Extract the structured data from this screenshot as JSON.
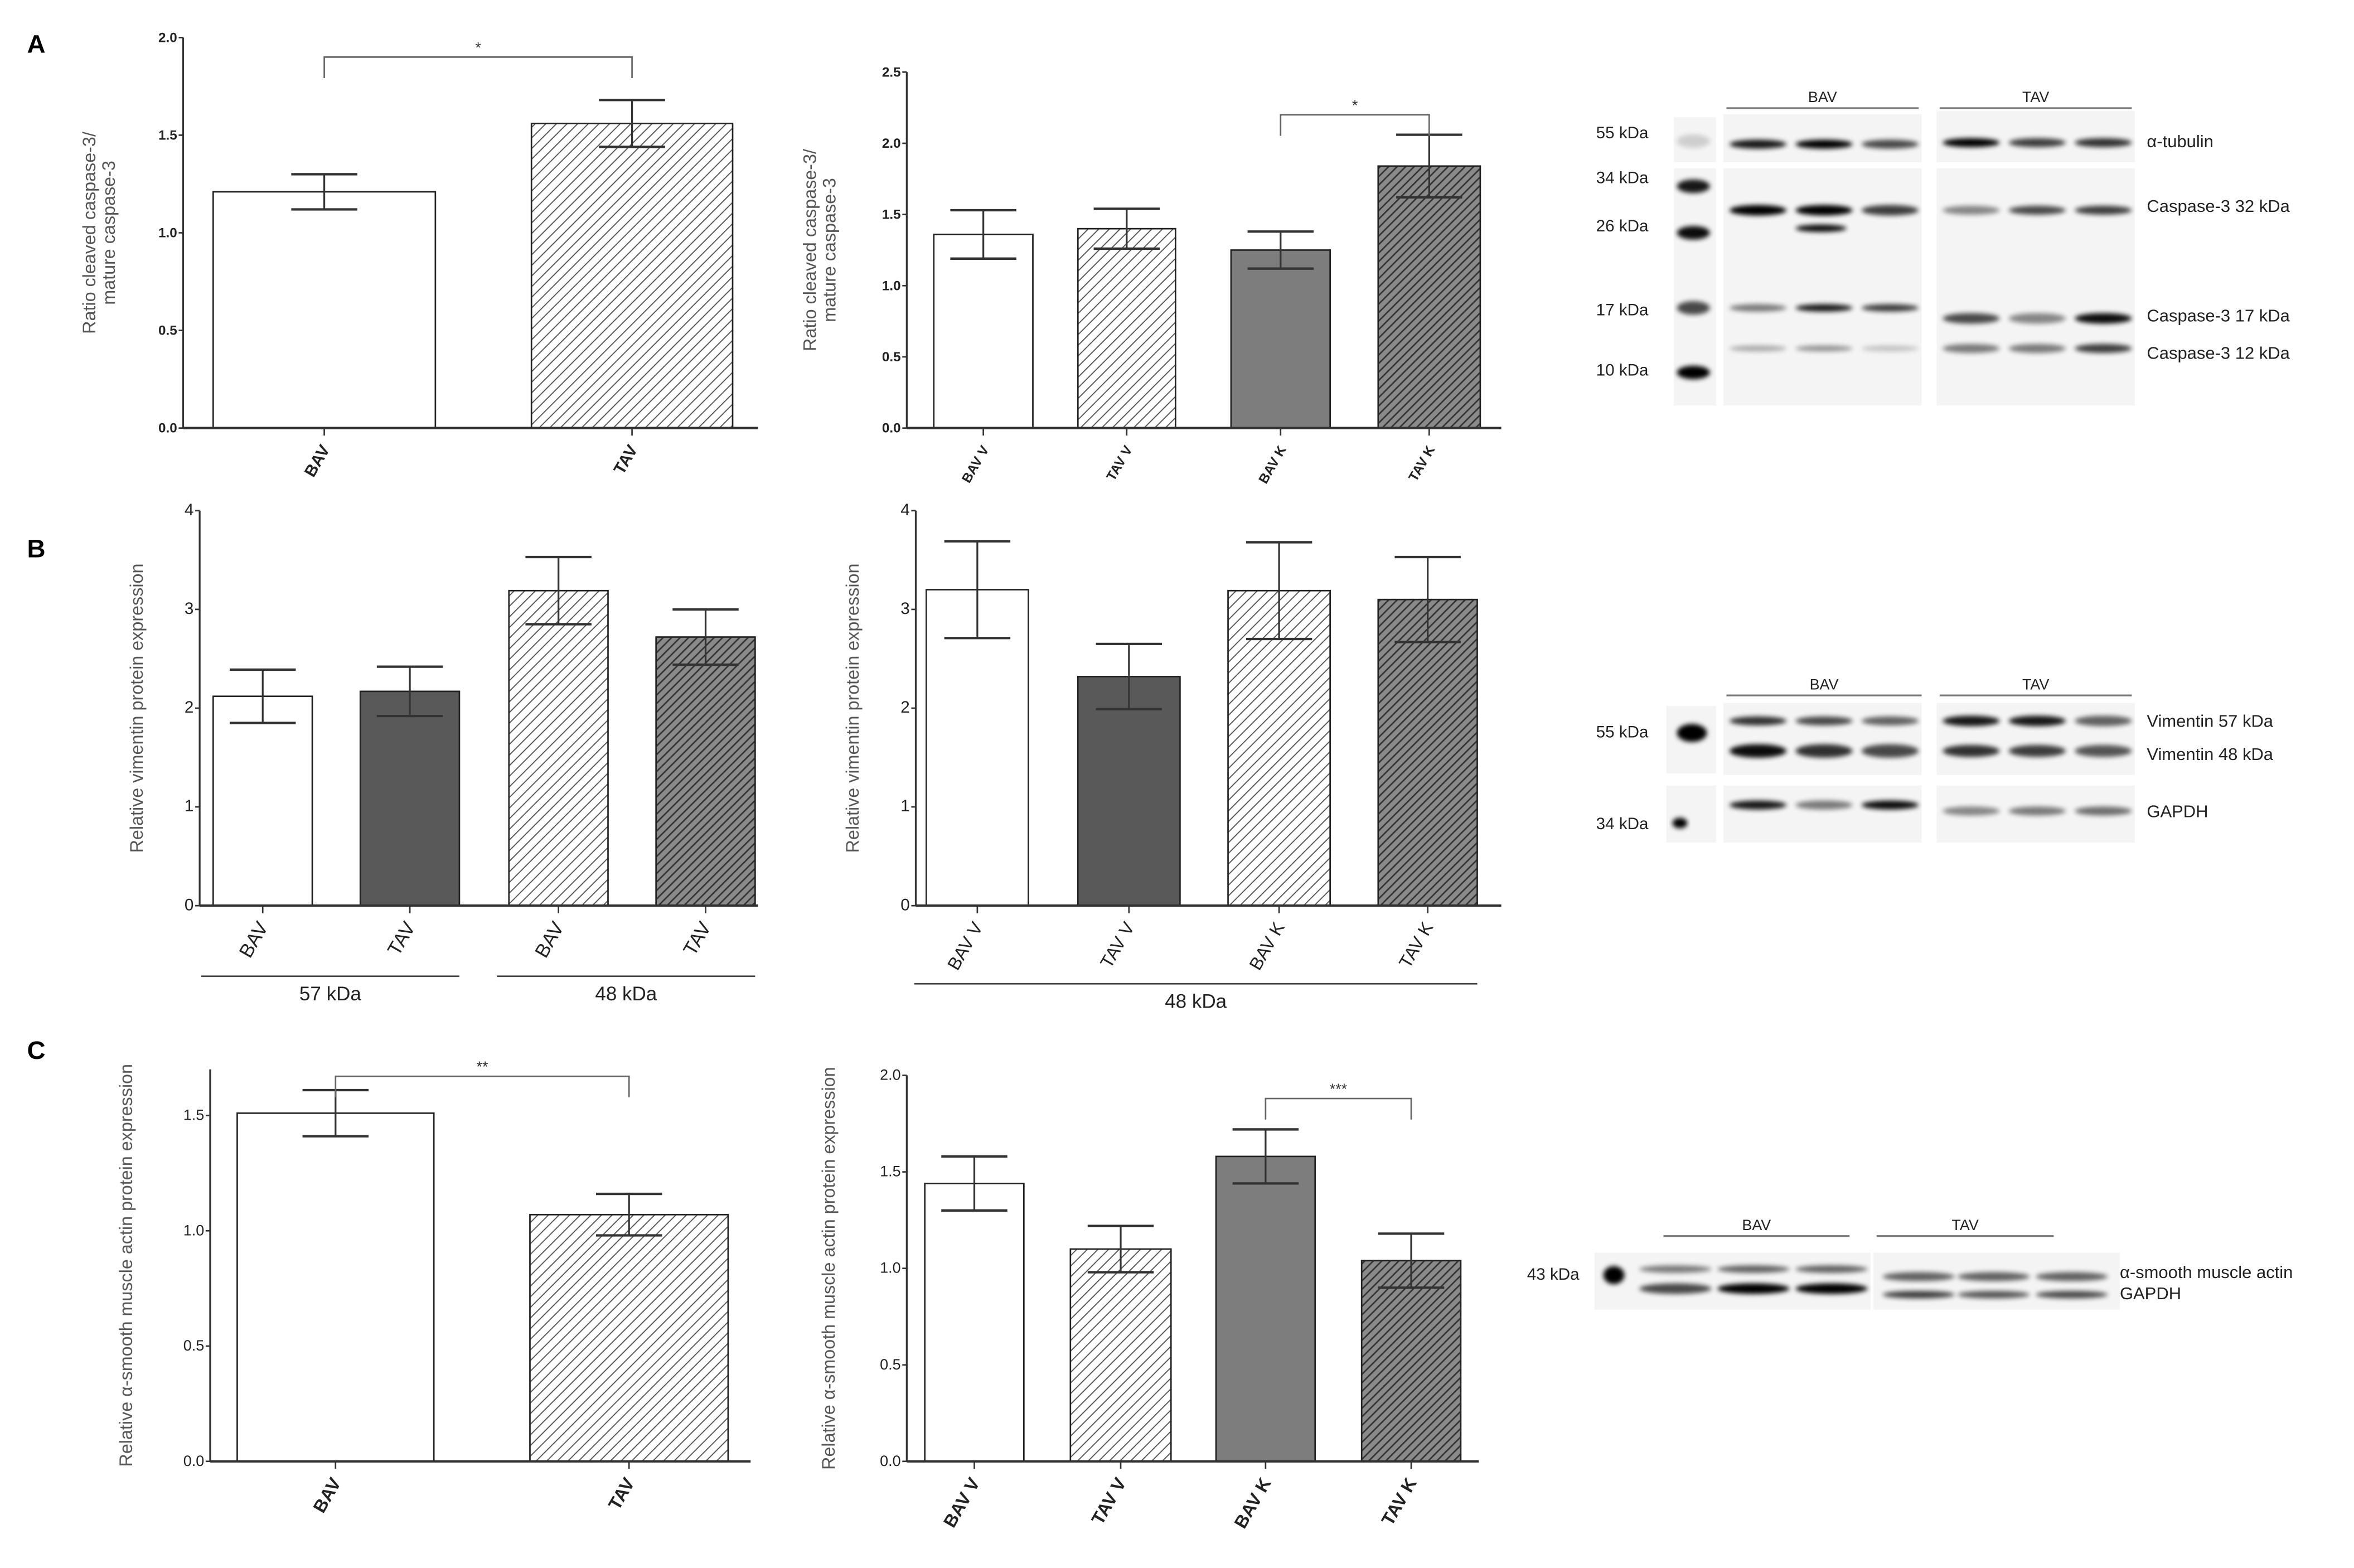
{
  "panel_labels": [
    "A",
    "B",
    "C"
  ],
  "chart_data": [
    {
      "id": "A1",
      "type": "bar",
      "ylabel": [
        "Ratio cleaved caspase-3/",
        "mature caspase-3"
      ],
      "categories": [
        "BAV",
        "TAV"
      ],
      "values": [
        1.21,
        1.56
      ],
      "error": [
        0.09,
        0.12
      ],
      "ylim": [
        0,
        2.0
      ],
      "yticks": [
        "0.0",
        "0.5",
        "1.0",
        "1.5",
        "2.0"
      ],
      "fills": [
        "white",
        "hatch-light"
      ],
      "category_bold": true,
      "significance": [
        {
          "from": 0,
          "to": 1,
          "label": "*",
          "y": 1.9
        }
      ]
    },
    {
      "id": "A2",
      "type": "bar",
      "ylabel": [
        "Ratio cleaved caspase-3/",
        "mature caspase-3"
      ],
      "categories": [
        "BAV V",
        "TAV V",
        "BAV K",
        "TAV K"
      ],
      "values": [
        1.36,
        1.4,
        1.25,
        1.84
      ],
      "error": [
        0.17,
        0.14,
        0.13,
        0.22
      ],
      "ylim": [
        0,
        2.5
      ],
      "yticks": [
        "0.0",
        "0.5",
        "1.0",
        "1.5",
        "2.0",
        "2.5"
      ],
      "fills": [
        "white",
        "hatch-light",
        "solid-grey",
        "hatch-dark"
      ],
      "category_bold": true,
      "significance": [
        {
          "from": 2,
          "to": 3,
          "label": "*",
          "y": 2.2
        }
      ]
    },
    {
      "id": "B1",
      "type": "bar",
      "ylabel": [
        "Relative vimentin  protein expression"
      ],
      "categories": [
        "BAV",
        "TAV",
        "BAV",
        "TAV"
      ],
      "values": [
        2.12,
        2.17,
        3.19,
        2.72
      ],
      "error": [
        0.27,
        0.25,
        0.34,
        0.28
      ],
      "ylim": [
        0,
        4
      ],
      "yticks": [
        "0",
        "1",
        "2",
        "3",
        "4"
      ],
      "fills": [
        "white",
        "solid-dark",
        "hatch-light",
        "hatch-dark"
      ],
      "category_bold": false,
      "groups": [
        {
          "label": "57 kDa",
          "from": 0,
          "to": 1
        },
        {
          "label": "48 kDa",
          "from": 2,
          "to": 3
        }
      ],
      "significance": []
    },
    {
      "id": "B2",
      "type": "bar",
      "ylabel": [
        "Relative vimentin  protein expression"
      ],
      "categories": [
        "BAV V",
        "TAV V",
        "BAV K",
        "TAV K"
      ],
      "values": [
        3.2,
        2.32,
        3.19,
        3.1
      ],
      "error": [
        0.49,
        0.33,
        0.49,
        0.43
      ],
      "ylim": [
        0,
        4
      ],
      "yticks": [
        "0",
        "1",
        "2",
        "3",
        "4"
      ],
      "fills": [
        "white",
        "solid-dark",
        "hatch-light",
        "hatch-dark"
      ],
      "category_bold": false,
      "groups": [
        {
          "label": "48 kDa",
          "from": 0,
          "to": 3
        }
      ],
      "significance": []
    },
    {
      "id": "C1",
      "type": "bar",
      "ylabel": [
        "Relative α-smooth muscle actin  protein expression"
      ],
      "categories": [
        "BAV",
        "TAV"
      ],
      "values": [
        1.51,
        1.07
      ],
      "error": [
        0.1,
        0.09
      ],
      "ylim": [
        0,
        1.7
      ],
      "yticks": [
        "0.0",
        "0.5",
        "1.0",
        "1.5"
      ],
      "fills": [
        "white",
        "hatch-light"
      ],
      "category_bold": true,
      "significance": [
        {
          "from": 0,
          "to": 1,
          "label": "**",
          "y": 1.67
        }
      ]
    },
    {
      "id": "C2",
      "type": "bar",
      "ylabel": [
        "Relative α-smooth muscle actin  protein expression"
      ],
      "categories": [
        "BAV V",
        "TAV V",
        "BAV K",
        "TAV K"
      ],
      "values": [
        1.44,
        1.1,
        1.58,
        1.04
      ],
      "error": [
        0.14,
        0.12,
        0.14,
        0.14
      ],
      "ylim": [
        0,
        2.0
      ],
      "yticks": [
        "0.0",
        "0.5",
        "1.0",
        "1.5",
        "2.0"
      ],
      "fills": [
        "white",
        "hatch-light",
        "solid-grey",
        "hatch-dark"
      ],
      "category_bold": true,
      "significance": [
        {
          "from": 2,
          "to": 3,
          "label": "***",
          "y": 1.88
        }
      ]
    }
  ],
  "blots": {
    "A": {
      "groups": [
        "BAV",
        "TAV"
      ],
      "markers": [
        "55 kDa",
        "34 kDa",
        "26 kDa",
        "17 kDa",
        "10 kDa"
      ],
      "bands": [
        "α-tubulin",
        "Caspase-3 32 kDa",
        "Caspase-3 17 kDa",
        "Caspase-3 12 kDa"
      ]
    },
    "B": {
      "groups": [
        "BAV",
        "TAV"
      ],
      "markers": [
        "55 kDa",
        "34 kDa"
      ],
      "bands": [
        "Vimentin 57 kDa",
        "Vimentin 48 kDa",
        "GAPDH"
      ]
    },
    "C": {
      "groups": [
        "BAV",
        "TAV"
      ],
      "markers": [
        "43 kDa"
      ],
      "bands": [
        "α-smooth muscle actin",
        "GAPDH"
      ]
    }
  },
  "colors": {
    "solid-grey": "#7d7d7d",
    "solid-dark": "#595959",
    "hatch-dark-bg": "#555555",
    "axis": "#333333",
    "text": "#222222"
  }
}
